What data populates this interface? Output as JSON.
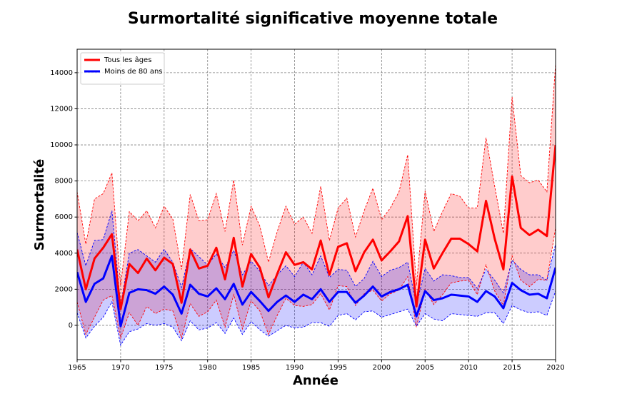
{
  "chart_data": {
    "type": "line",
    "title": "Surmortalité significative moyenne totale",
    "x_label": "Année",
    "y_label": "Surmortalité",
    "x": [
      1965,
      1966,
      1967,
      1968,
      1969,
      1970,
      1971,
      1972,
      1973,
      1974,
      1975,
      1976,
      1977,
      1978,
      1979,
      1980,
      1981,
      1982,
      1983,
      1984,
      1985,
      1986,
      1987,
      1988,
      1989,
      1990,
      1991,
      1992,
      1993,
      1994,
      1995,
      1996,
      1997,
      1998,
      1999,
      2000,
      2001,
      2002,
      2003,
      2004,
      2005,
      2006,
      2007,
      2008,
      2009,
      2010,
      2011,
      2012,
      2013,
      2014,
      2015,
      2016,
      2017,
      2018,
      2019,
      2020
    ],
    "series": [
      {
        "name": "Tous les âges",
        "color": "#ff0000",
        "values": [
          4200,
          2000,
          3700,
          4300,
          5050,
          900,
          3400,
          2900,
          3700,
          3050,
          3750,
          3400,
          1250,
          4200,
          3150,
          3300,
          4300,
          2550,
          4850,
          2150,
          3950,
          3200,
          1550,
          2850,
          4050,
          3350,
          3500,
          3100,
          4700,
          2800,
          4350,
          4550,
          3000,
          4050,
          4750,
          3600,
          4100,
          4650,
          6050,
          1050,
          4750,
          3150,
          4000,
          4800,
          4800,
          4500,
          4100,
          6900,
          4800,
          3100,
          8250,
          5400,
          5000,
          5300,
          4950,
          10000
        ],
        "upper": [
          7400,
          4500,
          7000,
          7300,
          8450,
          2200,
          6300,
          5800,
          6350,
          5400,
          6600,
          5900,
          3100,
          7250,
          5800,
          5850,
          7300,
          5200,
          8050,
          4450,
          6600,
          5500,
          3500,
          5200,
          6600,
          5600,
          6000,
          5100,
          7700,
          4700,
          6500,
          7050,
          4900,
          6350,
          7600,
          5850,
          6500,
          7400,
          9450,
          2200,
          7450,
          5200,
          6300,
          7300,
          7150,
          6500,
          6500,
          10400,
          7700,
          5100,
          12650,
          8300,
          7900,
          8050,
          7400,
          14500
        ],
        "lower": [
          1300,
          -500,
          450,
          1400,
          1650,
          -700,
          700,
          0,
          1050,
          650,
          900,
          800,
          -700,
          1200,
          500,
          750,
          1400,
          -100,
          1700,
          -200,
          1350,
          800,
          -500,
          550,
          1500,
          1100,
          1050,
          1150,
          1750,
          850,
          2200,
          2150,
          1100,
          1750,
          1950,
          1350,
          1750,
          1950,
          2700,
          -100,
          2000,
          1150,
          1700,
          2350,
          2450,
          2500,
          1700,
          3350,
          1900,
          1100,
          3850,
          2500,
          2150,
          2550,
          2500,
          5400
        ]
      },
      {
        "name": "Moins de 80 ans",
        "color": "#0000ff",
        "values": [
          2950,
          1300,
          2300,
          2600,
          3850,
          -50,
          1800,
          2000,
          1950,
          1750,
          2150,
          1700,
          650,
          2250,
          1750,
          1600,
          2050,
          1450,
          2300,
          1150,
          1850,
          1350,
          800,
          1300,
          1650,
          1300,
          1700,
          1450,
          2000,
          1300,
          1850,
          1850,
          1250,
          1650,
          2150,
          1600,
          1850,
          2000,
          2250,
          500,
          1900,
          1400,
          1500,
          1700,
          1650,
          1600,
          1300,
          1900,
          1600,
          950,
          2350,
          1950,
          1700,
          1750,
          1500,
          3200
        ],
        "upper": [
          5150,
          3300,
          4700,
          4750,
          6350,
          1100,
          4000,
          4200,
          3850,
          3500,
          4200,
          3500,
          2100,
          4250,
          3800,
          3350,
          3950,
          3200,
          4150,
          2800,
          3550,
          3000,
          2200,
          2800,
          3300,
          2700,
          3500,
          2800,
          3850,
          2650,
          3100,
          3050,
          2150,
          2600,
          3550,
          2700,
          3050,
          3200,
          3500,
          1100,
          3150,
          2450,
          2800,
          2750,
          2650,
          2650,
          2050,
          3100,
          2500,
          1800,
          3600,
          3100,
          2800,
          2800,
          2500,
          4500
        ],
        "lower": [
          700,
          -700,
          -50,
          450,
          1300,
          -1100,
          -350,
          -200,
          100,
          0,
          100,
          -100,
          -850,
          250,
          -250,
          -150,
          150,
          -450,
          400,
          -500,
          200,
          -250,
          -600,
          -300,
          0,
          -150,
          -100,
          150,
          150,
          -50,
          550,
          650,
          300,
          750,
          800,
          450,
          600,
          750,
          900,
          -50,
          650,
          350,
          250,
          650,
          600,
          550,
          500,
          700,
          700,
          100,
          1100,
          850,
          700,
          750,
          550,
          1900
        ]
      }
    ],
    "xlim": [
      1965,
      2020
    ],
    "xticks": [
      1965,
      1970,
      1975,
      1980,
      1985,
      1990,
      1995,
      2000,
      2005,
      2010,
      2015,
      2020
    ],
    "ylim": [
      -1900,
      15300
    ],
    "yticks": [
      0,
      2000,
      4000,
      6000,
      8000,
      10000,
      12000,
      14000
    ],
    "grid": true,
    "legend": "upper left"
  }
}
